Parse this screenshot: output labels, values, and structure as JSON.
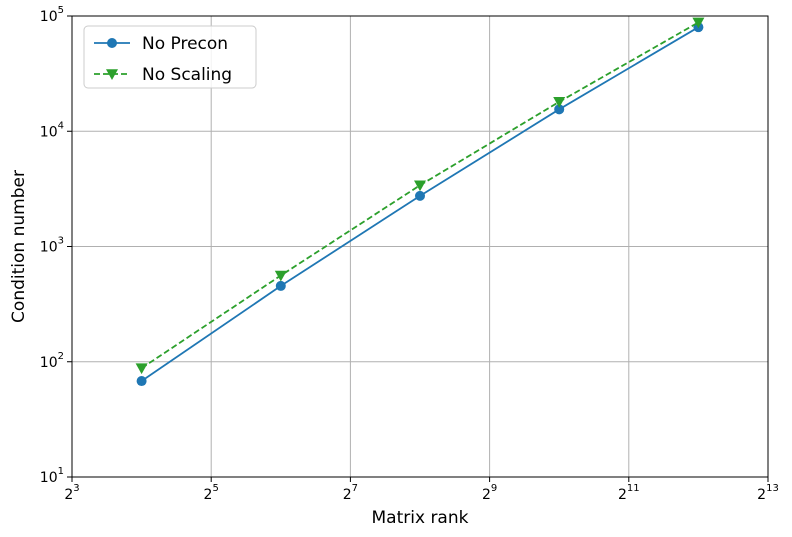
{
  "chart_data": {
    "type": "line",
    "xlabel": "Matrix rank",
    "ylabel": "Condition number",
    "x_scale": "log2",
    "y_scale": "log10",
    "xlim": [
      8,
      8192
    ],
    "ylim": [
      10,
      100000
    ],
    "grid": true,
    "legend_position": "top-left",
    "x_ticks": [
      {
        "value": 8,
        "base": "2",
        "exp": "3"
      },
      {
        "value": 32,
        "base": "2",
        "exp": "5"
      },
      {
        "value": 128,
        "base": "2",
        "exp": "7"
      },
      {
        "value": 512,
        "base": "2",
        "exp": "9"
      },
      {
        "value": 2048,
        "base": "2",
        "exp": "11"
      },
      {
        "value": 8192,
        "base": "2",
        "exp": "13"
      }
    ],
    "y_ticks": [
      {
        "value": 10,
        "base": "10",
        "exp": "1"
      },
      {
        "value": 100,
        "base": "10",
        "exp": "2"
      },
      {
        "value": 1000,
        "base": "10",
        "exp": "3"
      },
      {
        "value": 10000,
        "base": "10",
        "exp": "4"
      },
      {
        "value": 100000,
        "base": "10",
        "exp": "5"
      }
    ],
    "x": [
      16,
      64,
      256,
      1024,
      4096
    ],
    "series": [
      {
        "name": "No Precon",
        "values": [
          68,
          455,
          2750,
          15500,
          80000
        ],
        "color": "#1f77b4",
        "marker": "circle",
        "linestyle": "solid"
      },
      {
        "name": "No Scaling",
        "values": [
          88,
          560,
          3400,
          18000,
          88000
        ],
        "color": "#2ca02c",
        "marker": "triangle-down",
        "linestyle": "dashed"
      }
    ]
  }
}
